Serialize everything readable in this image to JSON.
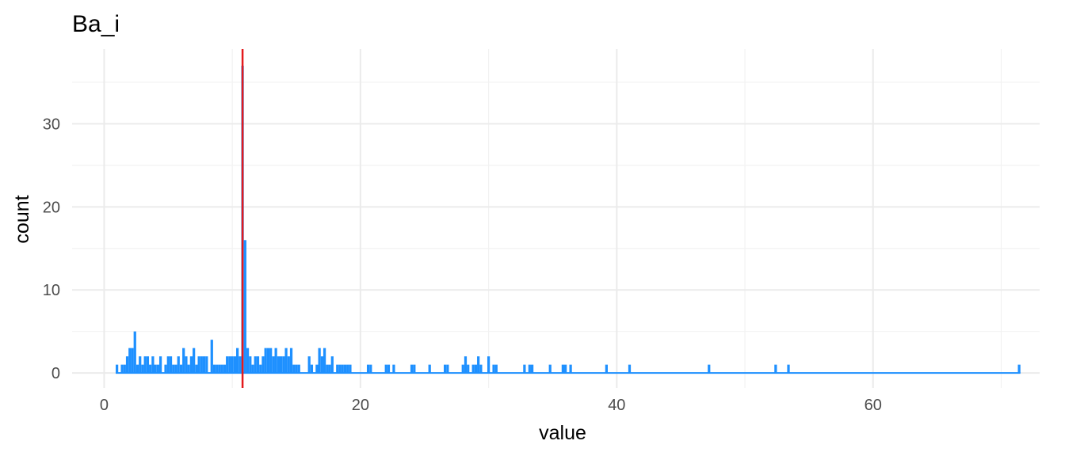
{
  "chart_data": {
    "type": "bar",
    "title": "Ba_i",
    "xlabel": "value",
    "ylabel": "count",
    "xlim": [
      -2.5,
      73
    ],
    "ylim": [
      -1.8,
      39
    ],
    "x_ticks": [
      0,
      20,
      40,
      60
    ],
    "y_ticks": [
      0,
      10,
      20,
      30
    ],
    "grid": true,
    "bar_color": "#1E90FF",
    "reference_line": {
      "x": 10.8,
      "color": "#E41A1C"
    },
    "bin_width": 0.2,
    "bin_start": 0.9,
    "bins": [
      [
        0.9,
        1
      ],
      [
        1.1,
        0
      ],
      [
        1.3,
        1
      ],
      [
        1.5,
        1
      ],
      [
        1.7,
        2
      ],
      [
        1.9,
        3
      ],
      [
        2.1,
        3
      ],
      [
        2.3,
        5
      ],
      [
        2.5,
        1
      ],
      [
        2.7,
        2
      ],
      [
        2.9,
        1
      ],
      [
        3.1,
        2
      ],
      [
        3.3,
        2
      ],
      [
        3.5,
        1
      ],
      [
        3.7,
        2
      ],
      [
        3.9,
        1
      ],
      [
        4.1,
        1
      ],
      [
        4.3,
        2
      ],
      [
        4.5,
        0
      ],
      [
        4.7,
        1
      ],
      [
        4.9,
        2
      ],
      [
        5.1,
        2
      ],
      [
        5.3,
        1
      ],
      [
        5.5,
        1
      ],
      [
        5.7,
        2
      ],
      [
        5.9,
        1
      ],
      [
        6.1,
        3
      ],
      [
        6.3,
        2
      ],
      [
        6.5,
        1
      ],
      [
        6.7,
        2
      ],
      [
        6.9,
        3
      ],
      [
        7.1,
        1
      ],
      [
        7.3,
        2
      ],
      [
        7.5,
        2
      ],
      [
        7.7,
        2
      ],
      [
        7.9,
        2
      ],
      [
        8.1,
        0
      ],
      [
        8.3,
        4
      ],
      [
        8.5,
        1
      ],
      [
        8.7,
        1
      ],
      [
        8.9,
        1
      ],
      [
        9.1,
        1
      ],
      [
        9.3,
        1
      ],
      [
        9.5,
        2
      ],
      [
        9.7,
        2
      ],
      [
        9.9,
        2
      ],
      [
        10.1,
        2
      ],
      [
        10.3,
        3
      ],
      [
        10.5,
        2
      ],
      [
        10.7,
        37
      ],
      [
        10.9,
        16
      ],
      [
        11.1,
        3
      ],
      [
        11.3,
        2
      ],
      [
        11.5,
        1
      ],
      [
        11.7,
        2
      ],
      [
        11.9,
        2
      ],
      [
        12.1,
        1
      ],
      [
        12.3,
        2
      ],
      [
        12.5,
        3
      ],
      [
        12.7,
        3
      ],
      [
        12.9,
        3
      ],
      [
        13.1,
        2
      ],
      [
        13.3,
        3
      ],
      [
        13.5,
        2
      ],
      [
        13.7,
        2
      ],
      [
        13.9,
        2
      ],
      [
        14.1,
        3
      ],
      [
        14.3,
        2
      ],
      [
        14.5,
        3
      ],
      [
        14.7,
        1
      ],
      [
        14.9,
        1
      ],
      [
        15.1,
        1
      ],
      [
        15.3,
        0
      ],
      [
        15.5,
        0
      ],
      [
        15.7,
        0
      ],
      [
        15.9,
        2
      ],
      [
        16.1,
        1
      ],
      [
        16.3,
        0
      ],
      [
        16.5,
        1
      ],
      [
        16.7,
        3
      ],
      [
        16.9,
        2
      ],
      [
        17.1,
        3
      ],
      [
        17.3,
        1
      ],
      [
        17.5,
        1
      ],
      [
        17.7,
        2
      ],
      [
        17.9,
        0
      ],
      [
        18.1,
        1
      ],
      [
        18.3,
        1
      ],
      [
        18.5,
        1
      ],
      [
        18.7,
        1
      ],
      [
        18.9,
        1
      ],
      [
        19.1,
        1
      ],
      [
        20.5,
        1
      ],
      [
        20.7,
        1
      ],
      [
        21.9,
        1
      ],
      [
        22.1,
        1
      ],
      [
        22.5,
        1
      ],
      [
        23.9,
        1
      ],
      [
        24.1,
        1
      ],
      [
        25.3,
        1
      ],
      [
        26.5,
        1
      ],
      [
        26.7,
        1
      ],
      [
        27.9,
        1
      ],
      [
        28.1,
        2
      ],
      [
        28.3,
        1
      ],
      [
        28.7,
        1
      ],
      [
        28.9,
        1
      ],
      [
        29.1,
        2
      ],
      [
        29.3,
        1
      ],
      [
        29.9,
        2
      ],
      [
        30.3,
        1
      ],
      [
        30.5,
        1
      ],
      [
        32.7,
        1
      ],
      [
        33.1,
        1
      ],
      [
        33.3,
        1
      ],
      [
        34.7,
        1
      ],
      [
        35.7,
        1
      ],
      [
        35.9,
        1
      ],
      [
        36.3,
        1
      ],
      [
        39.1,
        1
      ],
      [
        40.9,
        1
      ],
      [
        47.1,
        1
      ],
      [
        52.3,
        1
      ],
      [
        53.3,
        1
      ],
      [
        71.3,
        1
      ]
    ],
    "zero_baseline_range": [
      0.9,
      71.5
    ]
  }
}
